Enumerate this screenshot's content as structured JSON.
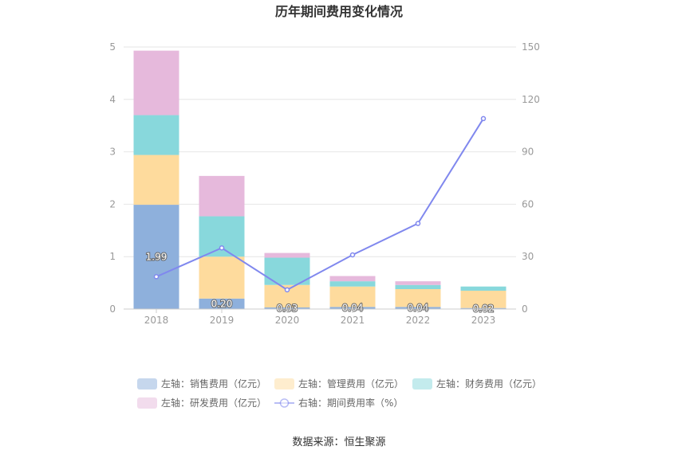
{
  "chart_data": {
    "type": "bar",
    "title": "历年期间费用变化情况",
    "categories": [
      "2018",
      "2019",
      "2020",
      "2021",
      "2022",
      "2023"
    ],
    "y_left": {
      "min": 0,
      "max": 5,
      "ticks": [
        "0",
        "1",
        "2",
        "3",
        "4",
        "5"
      ]
    },
    "y_right": {
      "min": 0,
      "max": 150,
      "ticks": [
        "0",
        "30",
        "60",
        "90",
        "120",
        "150"
      ]
    },
    "stacked": true,
    "grid": true,
    "legend_position": "bottom",
    "series": [
      {
        "name": "左轴：销售费用（亿元）",
        "axis": "left",
        "color": "#8eb0dc",
        "values": [
          1.99,
          0.2,
          0.03,
          0.04,
          0.04,
          0.02
        ],
        "labels": [
          "1.99",
          "0.20",
          "0.03",
          "0.04",
          "0.04",
          "0.02"
        ]
      },
      {
        "name": "左轴：管理费用（亿元）",
        "axis": "left",
        "color": "#fedb9d",
        "values": [
          0.95,
          0.8,
          0.43,
          0.39,
          0.34,
          0.33
        ]
      },
      {
        "name": "左轴：财务费用（亿元）",
        "axis": "left",
        "color": "#88d8dc",
        "values": [
          0.76,
          0.77,
          0.52,
          0.1,
          0.08,
          0.08
        ]
      },
      {
        "name": "左轴：研发费用（亿元）",
        "axis": "left",
        "color": "#e6b9dc",
        "values": [
          1.23,
          0.77,
          0.09,
          0.1,
          0.07,
          0.0
        ]
      },
      {
        "name": "右轴：期间费用率（%）",
        "axis": "right",
        "type": "line",
        "color": "#8088ee",
        "values": [
          18.5,
          35.0,
          11.0,
          31.0,
          49.0,
          109.0
        ]
      }
    ]
  },
  "footer": {
    "source": "数据来源：恒生聚源"
  }
}
